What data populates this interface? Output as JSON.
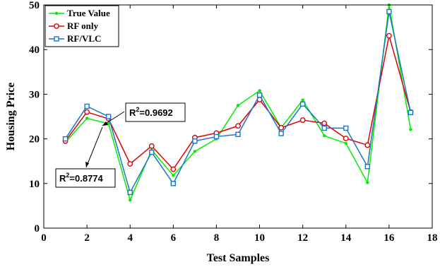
{
  "chart_data": {
    "type": "line",
    "xlabel": "Test Samples",
    "ylabel": "Housing Price",
    "xlim": [
      0,
      18
    ],
    "ylim": [
      0,
      50
    ],
    "xticks": [
      0,
      2,
      4,
      6,
      8,
      10,
      12,
      14,
      16,
      18
    ],
    "yticks": [
      0,
      10,
      20,
      30,
      40,
      50
    ],
    "grid": false,
    "legend_position": "top-left",
    "x": [
      1,
      2,
      3,
      4,
      5,
      6,
      7,
      8,
      9,
      10,
      11,
      12,
      13,
      14,
      15,
      16,
      17
    ],
    "series": [
      {
        "name": "True Value",
        "color": "#00ee00",
        "marker": "dot",
        "values": [
          19.2,
          24.6,
          23.4,
          6.3,
          17.5,
          11.8,
          17.2,
          20.0,
          27.5,
          30.8,
          22.5,
          28.7,
          20.7,
          19.0,
          10.2,
          50.0,
          22.1
        ]
      },
      {
        "name": "RF only",
        "color": "#e00000",
        "marker": "circle",
        "values": [
          19.5,
          26.0,
          24.5,
          14.4,
          18.4,
          13.2,
          20.3,
          21.3,
          22.9,
          28.8,
          22.5,
          24.2,
          23.5,
          20.1,
          18.6,
          43.1,
          26.0
        ]
      },
      {
        "name": "RF/VLC",
        "color": "#1a75c9",
        "marker": "square",
        "values": [
          20.0,
          27.3,
          25.0,
          8.0,
          17.0,
          10.0,
          19.5,
          20.5,
          21.0,
          29.8,
          21.2,
          27.8,
          22.4,
          22.4,
          13.8,
          48.5,
          25.9
        ]
      }
    ],
    "annotations": [
      {
        "label": "R",
        "sup": "2",
        "value": "=0.9692",
        "arrow_to_x": 3,
        "arrow_to_y": 23.5
      },
      {
        "label": "R",
        "sup": "2",
        "value": "=0.8774",
        "arrow_to_x": 3.3,
        "arrow_to_y": 25
      }
    ]
  }
}
